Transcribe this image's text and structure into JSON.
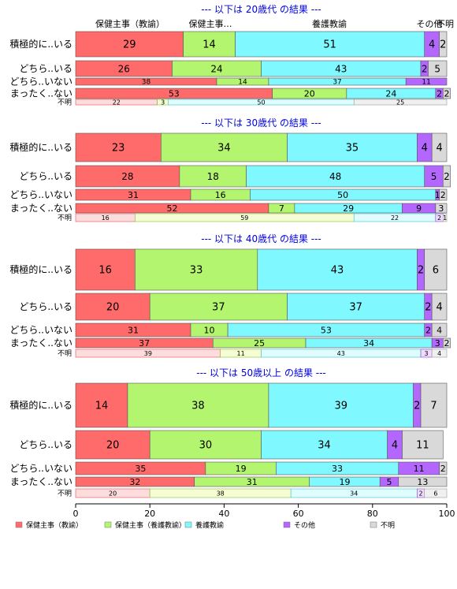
{
  "chart_data": {
    "type": "bar",
    "stacked": "horizontal-percent",
    "column_headers": [
      "保健主事（教諭）",
      "保健主事…",
      "養護教諭",
      "その他",
      "不明"
    ],
    "categories": [
      "積極的に..いる",
      "どちら..いる",
      "どちら..いない",
      "まったく..ない",
      "不明"
    ],
    "series": [
      {
        "name": "保健主事（教諭）",
        "color": "#ff6b6b"
      },
      {
        "name": "保健主事（養護教諭）",
        "color": "#b3f56e"
      },
      {
        "name": "養護教諭",
        "color": "#80f8ff"
      },
      {
        "name": "その他",
        "color": "#b367ff"
      },
      {
        "name": "不明",
        "color": "#d9d9d9"
      }
    ],
    "panels": [
      {
        "title": "--- 以下は 20歳代 の結果 ---",
        "rows": [
          [
            29,
            14,
            51,
            4,
            2
          ],
          [
            26,
            24,
            43,
            2,
            5
          ],
          [
            38,
            14,
            37,
            11,
            0
          ],
          [
            53,
            20,
            24,
            2,
            2
          ],
          [
            22,
            3,
            50,
            0,
            25
          ]
        ]
      },
      {
        "title": "--- 以下は 30歳代 の結果 ---",
        "rows": [
          [
            23,
            34,
            35,
            4,
            4
          ],
          [
            28,
            18,
            48,
            5,
            2
          ],
          [
            31,
            16,
            50,
            1,
            2
          ],
          [
            52,
            7,
            29,
            9,
            3
          ],
          [
            16,
            59,
            22,
            2,
            1
          ]
        ]
      },
      {
        "title": "--- 以下は 40歳代 の結果 ---",
        "rows": [
          [
            16,
            33,
            43,
            2,
            6
          ],
          [
            20,
            37,
            37,
            2,
            4
          ],
          [
            31,
            10,
            53,
            2,
            4
          ],
          [
            37,
            25,
            34,
            3,
            2
          ],
          [
            39,
            11,
            43,
            3,
            4
          ]
        ]
      },
      {
        "title": "--- 以下は 50歳以上 の結果 ---",
        "rows": [
          [
            14,
            38,
            39,
            2,
            7
          ],
          [
            20,
            30,
            34,
            4,
            11
          ],
          [
            35,
            19,
            33,
            11,
            2
          ],
          [
            32,
            31,
            19,
            5,
            13
          ],
          [
            20,
            38,
            34,
            2,
            6
          ]
        ]
      }
    ],
    "xlim": [
      0,
      100
    ],
    "xticks": [
      0,
      20,
      40,
      60,
      80,
      100
    ],
    "legend_position": "bottom",
    "grid": false
  }
}
